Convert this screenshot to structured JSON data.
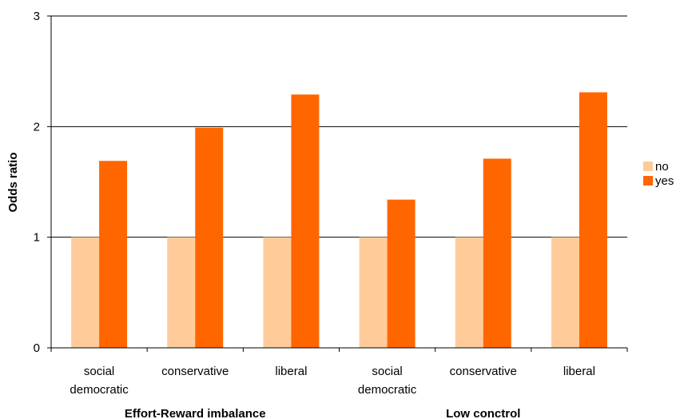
{
  "chart_data": {
    "type": "bar",
    "ylabel": "Odds ratio",
    "ylim": [
      0,
      3
    ],
    "yticks": [
      "0",
      "1",
      "2",
      "3"
    ],
    "grid": "horizontal",
    "legend_position": "right",
    "groups": [
      {
        "label": "Effort-Reward imbalance",
        "categories": [
          [
            "social",
            "democratic"
          ],
          [
            "conservative"
          ],
          [
            "liberal"
          ]
        ]
      },
      {
        "label": "Low conctrol",
        "categories": [
          [
            "social",
            "democratic"
          ],
          [
            "conservative"
          ],
          [
            "liberal"
          ]
        ]
      }
    ],
    "series": [
      {
        "name": "no",
        "color": "#FFCC99",
        "values": [
          1,
          1,
          1,
          1,
          1,
          1
        ]
      },
      {
        "name": "yes",
        "color": "#FF6600",
        "values": [
          1.69,
          1.99,
          2.29,
          1.34,
          1.71,
          2.31
        ]
      }
    ]
  }
}
